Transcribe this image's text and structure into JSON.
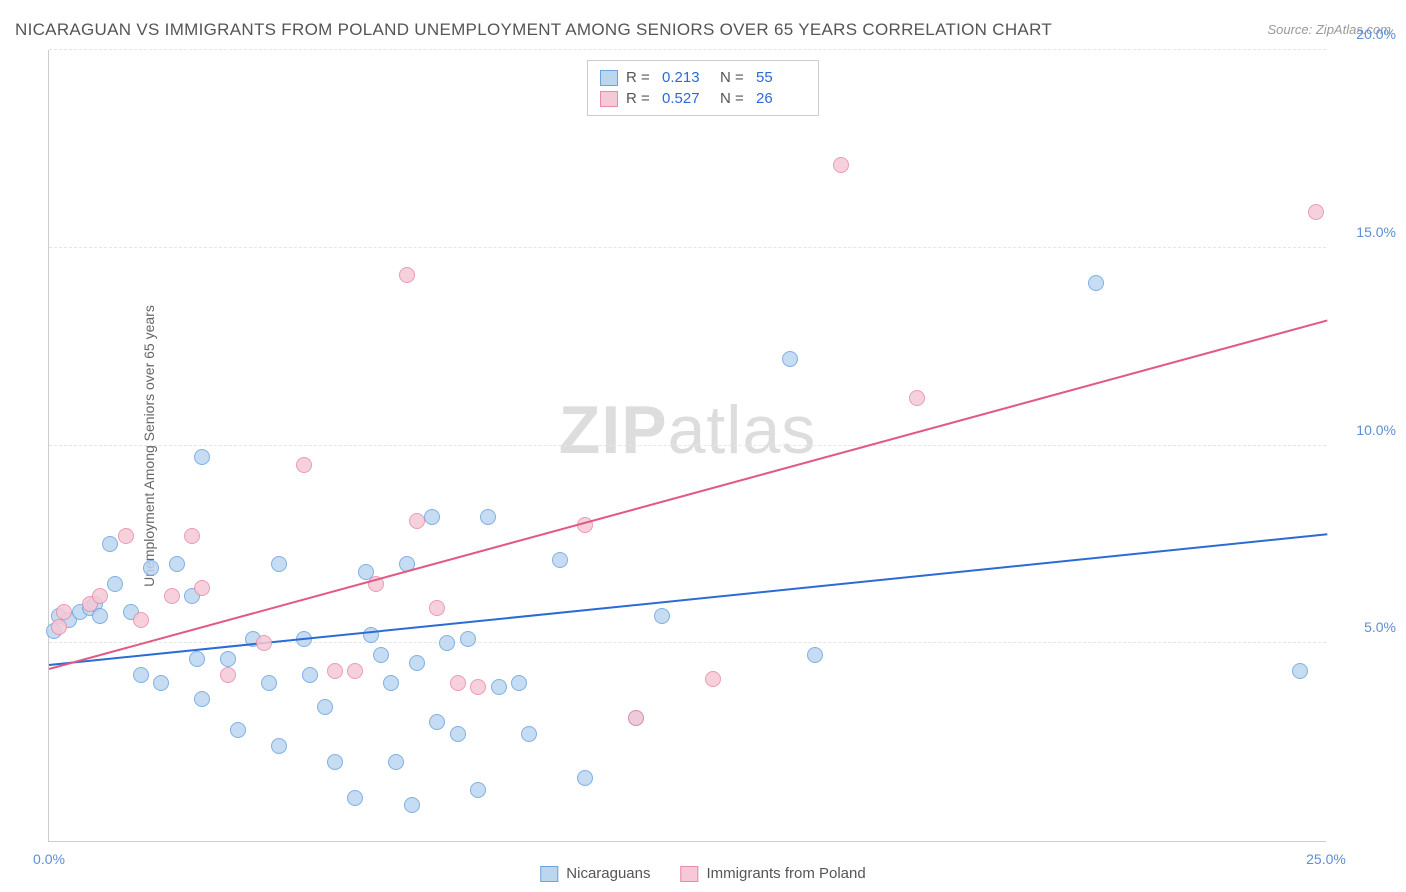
{
  "title": "NICARAGUAN VS IMMIGRANTS FROM POLAND UNEMPLOYMENT AMONG SENIORS OVER 65 YEARS CORRELATION CHART",
  "source": "Source: ZipAtlas.com",
  "ylabel": "Unemployment Among Seniors over 65 years",
  "watermark_bold": "ZIP",
  "watermark_rest": "atlas",
  "chart": {
    "type": "scatter-with-trend",
    "xlim": [
      0,
      25
    ],
    "ylim": [
      0,
      20
    ],
    "x_ticks": [
      0,
      25
    ],
    "x_tick_labels": [
      "0.0%",
      "25.0%"
    ],
    "y_ticks": [
      5,
      10,
      15,
      20
    ],
    "y_tick_labels": [
      "5.0%",
      "10.0%",
      "15.0%",
      "20.0%"
    ],
    "gridlines_y": [
      5,
      10,
      15,
      20
    ],
    "background_color": "#ffffff",
    "grid_color": "#e5e5e5",
    "axis_color": "#cccccc",
    "tick_font_color": "#5b8fd6",
    "tick_fontsize": 14,
    "label_font_color": "#666666",
    "label_fontsize": 14,
    "marker_radius": 8,
    "marker_stroke_width": 1,
    "trend_line_width": 2
  },
  "series": [
    {
      "name": "Nicaraguans",
      "fill": "#bcd6f0",
      "stroke": "#6ba3dd",
      "trend_color": "#2b6cd4",
      "R": "0.213",
      "N": "55",
      "trend": {
        "x1": 0,
        "y1": 4.5,
        "x2": 25,
        "y2": 7.8
      },
      "points": [
        [
          0.1,
          5.3
        ],
        [
          0.2,
          5.7
        ],
        [
          0.4,
          5.6
        ],
        [
          0.6,
          5.8
        ],
        [
          0.8,
          5.9
        ],
        [
          0.9,
          6.0
        ],
        [
          1.0,
          5.7
        ],
        [
          1.2,
          7.5
        ],
        [
          1.3,
          6.5
        ],
        [
          1.6,
          5.8
        ],
        [
          1.8,
          4.2
        ],
        [
          2.0,
          6.9
        ],
        [
          2.2,
          4.0
        ],
        [
          2.5,
          7.0
        ],
        [
          2.8,
          6.2
        ],
        [
          2.9,
          4.6
        ],
        [
          3.0,
          9.7
        ],
        [
          3.0,
          3.6
        ],
        [
          3.5,
          4.6
        ],
        [
          3.7,
          2.8
        ],
        [
          4.0,
          5.1
        ],
        [
          4.3,
          4.0
        ],
        [
          4.5,
          7.0
        ],
        [
          4.5,
          2.4
        ],
        [
          5.0,
          5.1
        ],
        [
          5.1,
          4.2
        ],
        [
          5.4,
          3.4
        ],
        [
          5.6,
          2.0
        ],
        [
          6.0,
          1.1
        ],
        [
          6.2,
          6.8
        ],
        [
          6.3,
          5.2
        ],
        [
          6.5,
          4.7
        ],
        [
          6.7,
          4.0
        ],
        [
          6.8,
          2.0
        ],
        [
          7.0,
          7.0
        ],
        [
          7.1,
          0.9
        ],
        [
          7.2,
          4.5
        ],
        [
          7.5,
          8.2
        ],
        [
          7.6,
          3.0
        ],
        [
          7.8,
          5.0
        ],
        [
          8.0,
          2.7
        ],
        [
          8.2,
          5.1
        ],
        [
          8.4,
          1.3
        ],
        [
          8.6,
          8.2
        ],
        [
          8.8,
          3.9
        ],
        [
          9.2,
          4.0
        ],
        [
          9.4,
          2.7
        ],
        [
          10.0,
          7.1
        ],
        [
          10.5,
          1.6
        ],
        [
          11.5,
          3.1
        ],
        [
          12.0,
          5.7
        ],
        [
          14.5,
          12.2
        ],
        [
          15.0,
          4.7
        ],
        [
          20.5,
          14.1
        ],
        [
          24.5,
          4.3
        ]
      ]
    },
    {
      "name": "Immigrants from Poland",
      "fill": "#f5c9d6",
      "stroke": "#e88aa8",
      "trend_color": "#e05a84",
      "R": "0.527",
      "N": "26",
      "trend": {
        "x1": 0,
        "y1": 4.4,
        "x2": 25,
        "y2": 13.2
      },
      "points": [
        [
          0.2,
          5.4
        ],
        [
          0.3,
          5.8
        ],
        [
          0.8,
          6.0
        ],
        [
          1.0,
          6.2
        ],
        [
          1.5,
          7.7
        ],
        [
          1.8,
          5.6
        ],
        [
          2.4,
          6.2
        ],
        [
          2.8,
          7.7
        ],
        [
          3.0,
          6.4
        ],
        [
          3.5,
          4.2
        ],
        [
          4.2,
          5.0
        ],
        [
          5.0,
          9.5
        ],
        [
          5.6,
          4.3
        ],
        [
          6.0,
          4.3
        ],
        [
          6.4,
          6.5
        ],
        [
          7.0,
          14.3
        ],
        [
          7.2,
          8.1
        ],
        [
          7.6,
          5.9
        ],
        [
          8.0,
          4.0
        ],
        [
          8.4,
          3.9
        ],
        [
          10.5,
          8.0
        ],
        [
          11.5,
          3.1
        ],
        [
          13.0,
          4.1
        ],
        [
          15.5,
          17.1
        ],
        [
          17.0,
          11.2
        ],
        [
          24.8,
          15.9
        ]
      ]
    }
  ],
  "legend_top": {
    "r_label": "R  =",
    "n_label": "N  ="
  },
  "legend_bottom": [
    {
      "label": "Nicaraguans",
      "fill": "#bcd6f0",
      "stroke": "#6ba3dd"
    },
    {
      "label": "Immigrants from Poland",
      "fill": "#f5c9d6",
      "stroke": "#e88aa8"
    }
  ]
}
